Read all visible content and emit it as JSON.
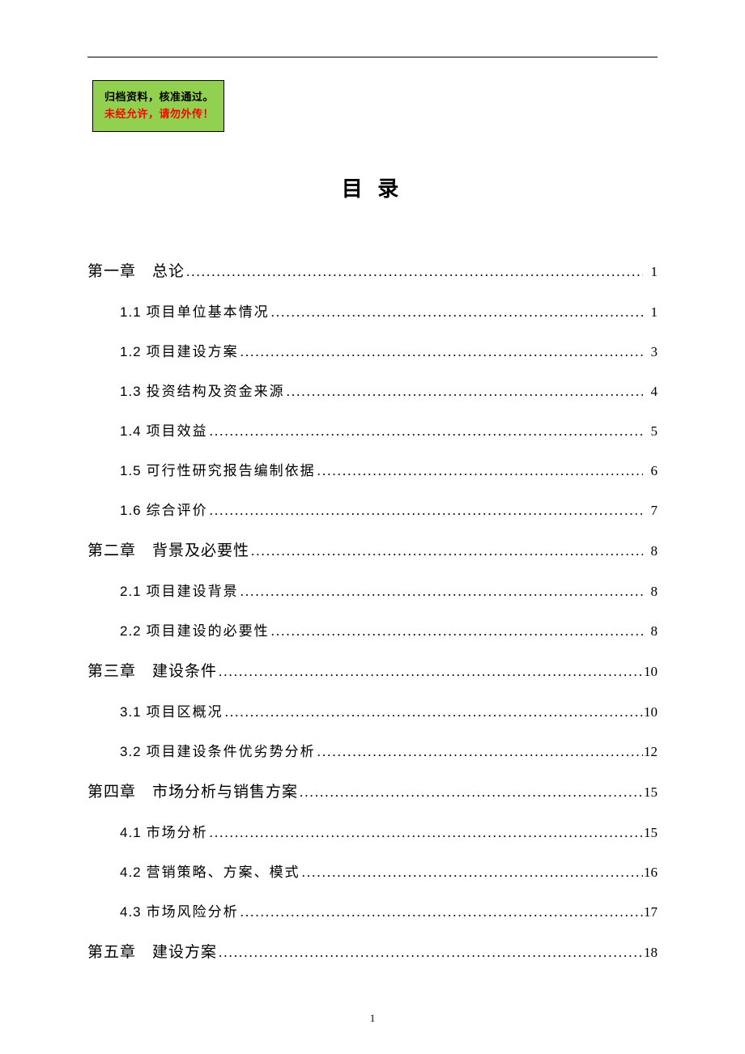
{
  "badge": {
    "line1": "归档资料，核准通过。",
    "line2": "未经允许，请勿外传！",
    "bg_color": "#92d050",
    "border_color": "#000000",
    "line2_color": "#ff0000"
  },
  "title": "目 录",
  "toc": [
    {
      "type": "chapter",
      "label": "第一章　总论",
      "page": "1"
    },
    {
      "type": "section",
      "num": "1.1",
      "text": "项目单位基本情况",
      "page": "1"
    },
    {
      "type": "section",
      "num": "1.2",
      "text": "项目建设方案",
      "page": "3"
    },
    {
      "type": "section",
      "num": "1.3",
      "text": "投资结构及资金来源",
      "page": "4"
    },
    {
      "type": "section",
      "num": "1.4",
      "text": "项目效益",
      "page": "5"
    },
    {
      "type": "section",
      "num": "1.5",
      "text": "可行性研究报告编制依据",
      "page": "6"
    },
    {
      "type": "section",
      "num": "1.6",
      "text": "综合评价",
      "page": "7"
    },
    {
      "type": "chapter",
      "label": "第二章　背景及必要性",
      "page": "8"
    },
    {
      "type": "section",
      "num": "2.1",
      "text": "项目建设背景",
      "page": "8"
    },
    {
      "type": "section",
      "num": "2.2",
      "text": "项目建设的必要性",
      "page": "8"
    },
    {
      "type": "chapter",
      "label": "第三章　建设条件",
      "page": "10"
    },
    {
      "type": "section",
      "num": "3.1",
      "text": "项目区概况",
      "page": "10"
    },
    {
      "type": "section",
      "num": "3.2",
      "text": "项目建设条件优劣势分析",
      "page": "12"
    },
    {
      "type": "chapter",
      "label": "第四章　市场分析与销售方案",
      "page": "15"
    },
    {
      "type": "section",
      "num": "4.1",
      "text": "市场分析",
      "page": "15"
    },
    {
      "type": "section",
      "num": "4.2",
      "text": "营销策略、方案、模式",
      "page": "16"
    },
    {
      "type": "section",
      "num": "4.3",
      "text": "市场风险分析",
      "page": "17"
    },
    {
      "type": "chapter",
      "label": "第五章　建设方案",
      "page": "18"
    }
  ],
  "footer_page": "1",
  "style": {
    "page_bg": "#ffffff",
    "text_color": "#000000",
    "title_fontsize": 26,
    "chapter_fontsize": 19,
    "section_fontsize": 17,
    "row_spacing": 24
  }
}
